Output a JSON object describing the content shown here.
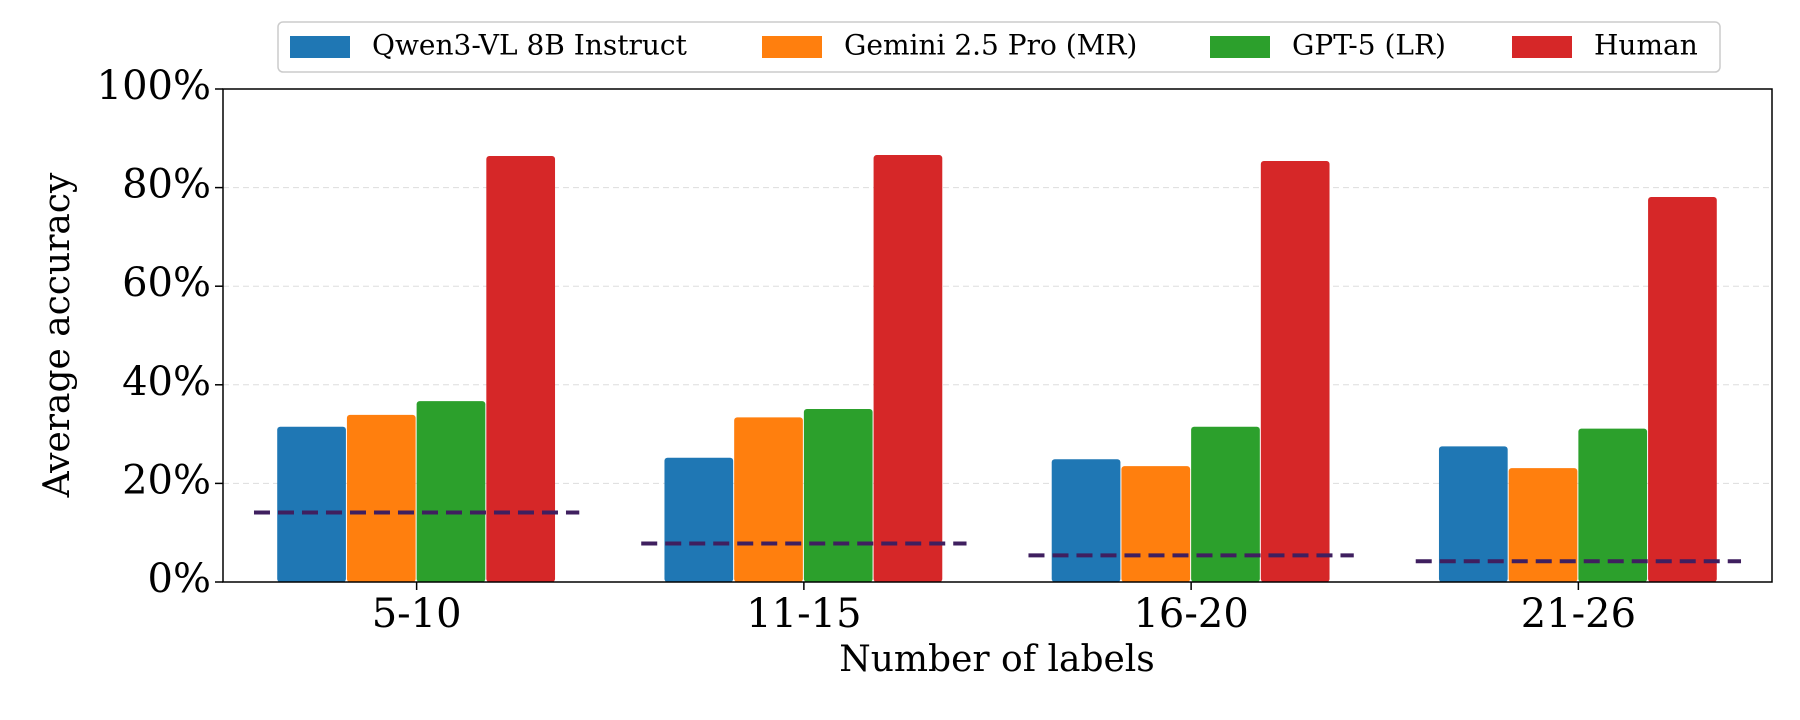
{
  "chart_data": {
    "type": "bar",
    "xlabel": "Number of labels",
    "ylabel": "Average accuracy",
    "categories": [
      "5-10",
      "11-15",
      "16-20",
      "21-26"
    ],
    "series": [
      {
        "name": "Qwen3-VL 8B Instruct",
        "color": "#1f77b4",
        "values": [
          31.5,
          25.2,
          24.9,
          27.5
        ]
      },
      {
        "name": "Gemini 2.5 Pro (MR)",
        "color": "#ff7f0e",
        "values": [
          33.9,
          33.4,
          23.5,
          23.1
        ]
      },
      {
        "name": "GPT-5 (LR)",
        "color": "#2ca02c",
        "values": [
          36.7,
          35.1,
          31.5,
          31.1
        ]
      },
      {
        "name": "Human",
        "color": "#d62728",
        "values": [
          86.4,
          86.6,
          85.4,
          78.1
        ]
      }
    ],
    "baseline": {
      "color": "#3f1f5f",
      "values": [
        14.1,
        7.8,
        5.4,
        4.2
      ]
    },
    "ylim": [
      0,
      100
    ],
    "yticks": [
      {
        "value": 0,
        "label": "0%"
      },
      {
        "value": 20,
        "label": "20%"
      },
      {
        "value": 40,
        "label": "40%"
      },
      {
        "value": 60,
        "label": "60%"
      },
      {
        "value": 80,
        "label": "80%"
      },
      {
        "value": 100,
        "label": "100%"
      }
    ],
    "grid": true,
    "legend": "top"
  }
}
